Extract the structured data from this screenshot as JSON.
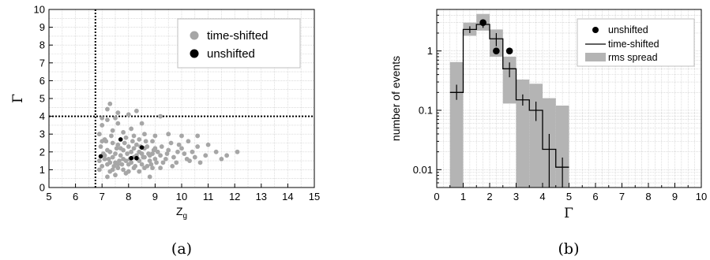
{
  "chart_data": [
    {
      "type": "scatter",
      "panel_label": "(a)",
      "xlabel": "Z",
      "xlabel_sub": "g",
      "ylabel": "Γ",
      "xlim": [
        5,
        15
      ],
      "ylim": [
        0,
        10
      ],
      "xticks": [
        "5",
        "6",
        "7",
        "8",
        "9",
        "10",
        "11",
        "12",
        "13",
        "14",
        "15"
      ],
      "yticks": [
        "0",
        "1",
        "2",
        "3",
        "4",
        "5",
        "6",
        "7",
        "8",
        "9",
        "10"
      ],
      "grid": true,
      "legend": "top-right",
      "cut_lines": {
        "x": 6.75,
        "y": 4
      },
      "series": [
        {
          "name": "time-shifted",
          "color": "#a6a6a6",
          "points": [
            [
              6.9,
              1.5
            ],
            [
              7.0,
              1.2
            ],
            [
              7.1,
              1.8
            ],
            [
              7.2,
              2.1
            ],
            [
              7.3,
              1.4
            ],
            [
              7.4,
              2.5
            ],
            [
              7.5,
              1.9
            ],
            [
              7.6,
              1.1
            ],
            [
              7.7,
              2.2
            ],
            [
              7.8,
              1.6
            ],
            [
              7.9,
              2.8
            ],
            [
              8.0,
              1.3
            ],
            [
              8.1,
              2.0
            ],
            [
              8.2,
              1.7
            ],
            [
              8.3,
              2.4
            ],
            [
              8.4,
              1.5
            ],
            [
              8.5,
              1.9
            ],
            [
              8.6,
              2.2
            ],
            [
              8.7,
              1.2
            ],
            [
              8.8,
              1.8
            ],
            [
              8.9,
              2.6
            ],
            [
              9.0,
              1.6
            ],
            [
              9.1,
              2.0
            ],
            [
              9.3,
              1.4
            ],
            [
              9.5,
              2.1
            ],
            [
              9.7,
              1.7
            ],
            [
              9.9,
              2.4
            ],
            [
              10.1,
              1.9
            ],
            [
              10.3,
              1.5
            ],
            [
              10.6,
              2.3
            ],
            [
              10.9,
              1.8
            ],
            [
              11.3,
              2.0
            ],
            [
              11.7,
              1.8
            ],
            [
              12.1,
              2.0
            ],
            [
              6.9,
              3.0
            ],
            [
              7.0,
              3.5
            ],
            [
              7.1,
              2.7
            ],
            [
              7.2,
              3.8
            ],
            [
              7.3,
              0.9
            ],
            [
              7.4,
              3.2
            ],
            [
              7.5,
              0.7
            ],
            [
              7.6,
              3.6
            ],
            [
              7.8,
              3.1
            ],
            [
              7.9,
              0.8
            ],
            [
              8.1,
              3.3
            ],
            [
              8.2,
              2.9
            ],
            [
              8.4,
              2.7
            ],
            [
              8.6,
              3.0
            ],
            [
              8.8,
              0.6
            ],
            [
              9.0,
              2.9
            ],
            [
              7.2,
              4.4
            ],
            [
              7.3,
              4.7
            ],
            [
              7.6,
              4.2
            ],
            [
              8.0,
              4.1
            ],
            [
              8.3,
              4.3
            ],
            [
              9.2,
              4.0
            ],
            [
              7.1,
              1.6
            ],
            [
              7.2,
              1.3
            ],
            [
              7.3,
              2.0
            ],
            [
              7.4,
              1.7
            ],
            [
              7.5,
              1.4
            ],
            [
              7.6,
              2.4
            ],
            [
              7.7,
              1.8
            ],
            [
              7.8,
              2.1
            ],
            [
              7.9,
              1.5
            ],
            [
              8.0,
              2.3
            ],
            [
              8.1,
              1.4
            ],
            [
              8.2,
              2.2
            ],
            [
              8.3,
              1.8
            ],
            [
              8.4,
              2.0
            ],
            [
              8.5,
              1.3
            ],
            [
              8.6,
              1.7
            ],
            [
              8.7,
              2.3
            ],
            [
              8.8,
              1.5
            ],
            [
              8.9,
              1.9
            ],
            [
              9.0,
              2.2
            ],
            [
              9.2,
              1.8
            ],
            [
              9.4,
              1.6
            ],
            [
              9.6,
              2.5
            ],
            [
              9.8,
              1.4
            ],
            [
              10.0,
              2.2
            ],
            [
              10.2,
              1.6
            ],
            [
              10.4,
              2.0
            ],
            [
              10.7,
              1.4
            ],
            [
              11.0,
              2.4
            ],
            [
              11.5,
              1.6
            ],
            [
              6.95,
              2.3
            ],
            [
              7.05,
              1.9
            ],
            [
              7.15,
              2.6
            ],
            [
              7.25,
              1.6
            ],
            [
              7.35,
              2.9
            ],
            [
              7.45,
              1.2
            ],
            [
              7.55,
              2.2
            ],
            [
              7.65,
              1.5
            ],
            [
              7.75,
              1.3
            ],
            [
              7.85,
              2.5
            ],
            [
              7.95,
              1.9
            ],
            [
              8.05,
              1.6
            ],
            [
              8.15,
              2.6
            ],
            [
              8.25,
              1.2
            ],
            [
              8.35,
              1.6
            ],
            [
              8.45,
              2.3
            ],
            [
              8.55,
              1.7
            ],
            [
              8.65,
              2.6
            ],
            [
              8.75,
              1.9
            ],
            [
              8.85,
              1.3
            ],
            [
              8.95,
              2.1
            ],
            [
              9.05,
              1.4
            ],
            [
              9.25,
              2.3
            ],
            [
              9.45,
              1.9
            ],
            [
              9.65,
              1.2
            ],
            [
              9.85,
              2.0
            ],
            [
              10.25,
              2.6
            ],
            [
              10.5,
              1.7
            ],
            [
              6.9,
              1.0
            ],
            [
              7.0,
              2.6
            ],
            [
              7.2,
              0.6
            ],
            [
              7.4,
              1.0
            ],
            [
              7.6,
              1.3
            ],
            [
              7.8,
              1.0
            ],
            [
              8.0,
              0.9
            ],
            [
              8.2,
              1.1
            ],
            [
              8.4,
              0.9
            ],
            [
              8.6,
              1.1
            ],
            [
              8.9,
              1.1
            ],
            [
              9.2,
              1.1
            ],
            [
              7.0,
              3.9
            ],
            [
              7.5,
              3.9
            ],
            [
              8.5,
              3.6
            ],
            [
              9.5,
              3.0
            ],
            [
              10.0,
              2.9
            ],
            [
              10.6,
              2.9
            ]
          ]
        },
        {
          "name": "unshifted",
          "color": "#000000",
          "points": [
            [
              6.95,
              1.75
            ],
            [
              7.7,
              2.7
            ],
            [
              8.1,
              1.65
            ],
            [
              8.3,
              1.65
            ],
            [
              8.5,
              2.25
            ]
          ]
        }
      ]
    },
    {
      "type": "line",
      "panel_label": "(b)",
      "xlabel": "Γ",
      "ylabel": "number of events",
      "xlim": [
        0,
        10
      ],
      "ylim": [
        0.005,
        5
      ],
      "yscale": "log",
      "xticks": [
        "0",
        "1",
        "2",
        "3",
        "4",
        "5",
        "6",
        "7",
        "8",
        "9",
        "10"
      ],
      "yticks": [
        "0.01",
        "0.1",
        "1"
      ],
      "grid": true,
      "legend": "top-right",
      "bin_edges": [
        0.5,
        1.0,
        1.5,
        2.0,
        2.5,
        3.0,
        3.5,
        4.0,
        4.5,
        5.0
      ],
      "series": [
        {
          "name": "unshifted",
          "type": "scatter",
          "color": "#000000",
          "points": [
            [
              1.75,
              3.0
            ],
            [
              2.25,
              1.0
            ],
            [
              2.75,
              1.0
            ]
          ]
        },
        {
          "name": "time-shifted",
          "type": "step",
          "color": "#000000",
          "values": [
            0.2,
            2.3,
            2.8,
            1.6,
            0.5,
            0.15,
            0.1,
            0.022,
            0.011
          ],
          "errors_low": [
            0.15,
            2.0,
            2.45,
            1.2,
            0.36,
            0.12,
            0.066,
            0.005,
            0.005
          ],
          "errors_high": [
            0.27,
            2.6,
            3.2,
            2.0,
            0.64,
            0.185,
            0.14,
            0.04,
            0.016
          ]
        },
        {
          "name": "rms spread",
          "type": "band",
          "color": "#b4b4b4",
          "lower": [
            0.005,
            1.8,
            2.2,
            0.8,
            0.13,
            0.005,
            0.005,
            0.005,
            0.005
          ],
          "upper": [
            0.65,
            3.0,
            4.2,
            2.3,
            0.8,
            0.33,
            0.28,
            0.16,
            0.12
          ]
        }
      ]
    }
  ]
}
